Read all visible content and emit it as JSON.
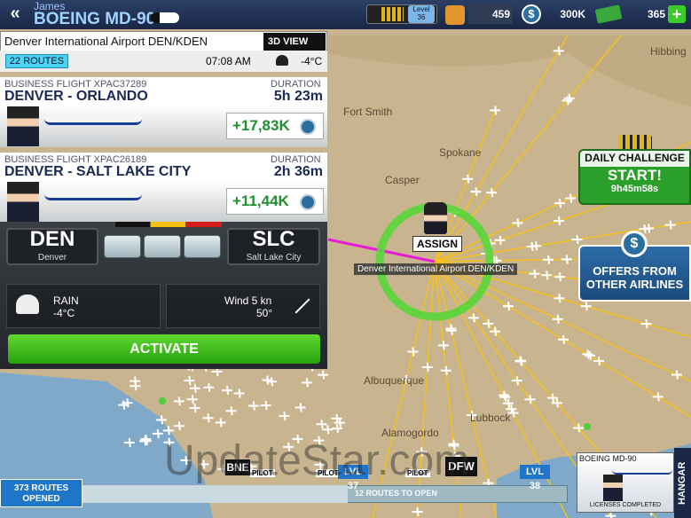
{
  "header": {
    "player": "James",
    "aircraft": "BOEING MD-90",
    "level_label": "Level",
    "level": "36",
    "rank_points": "459",
    "coins": "300K",
    "cash": "365"
  },
  "airport_panel": {
    "title": "Denver International Airport DEN/KDEN",
    "view_button": "3D VIEW",
    "routes": "22 ROUTES",
    "time": "07:08 AM",
    "temperature": "-4°C"
  },
  "flights": [
    {
      "kind": "BUSINESS FLIGHT XPAC37289",
      "duration_label": "DURATION",
      "route": "DENVER - ORLANDO",
      "duration": "5h 23m",
      "reward": "+17,83K"
    },
    {
      "kind": "BUSINESS FLIGHT XPAC26189",
      "duration_label": "DURATION",
      "route": "DENVER - SALT LAKE CITY",
      "duration": "2h 36m",
      "reward": "+11,44K"
    }
  ],
  "detail": {
    "origin_code": "DEN",
    "origin_city": "Denver",
    "destination_code": "SLC",
    "destination_city": "Salt Lake City",
    "weather": "RAIN",
    "weather_temp": "-4°C",
    "wind": "Wind 5 kn",
    "wind_dir": "50°",
    "activate": "ACTIVATE"
  },
  "map": {
    "cities": [
      "Fort Smith",
      "Spokane",
      "Hibbing",
      "Casper",
      "Albuquerque",
      "Alamogordo",
      "Lubbock"
    ],
    "assign": "ASSIGN",
    "airport_label": "Denver International Airport DEN/KDEN"
  },
  "daily_challenge": {
    "title": "DAILY CHALLENGE",
    "action": "START!",
    "timer": "9h45m58s"
  },
  "offers": {
    "text": "OFFERS FROM OTHER AIRLINES"
  },
  "progress": {
    "opened": "373 ROUTES OPENED",
    "to_open": "12 ROUTES TO OPEN",
    "hub1": "BNE",
    "pilot1": "PILOT",
    "pilot2": "PILOT",
    "lvl1": "LVL 37",
    "pilot3": "PILOT",
    "hub2": "DFW",
    "lvl2": "LVL 38"
  },
  "hangar": {
    "aircraft": "BOEING MD-90",
    "status": "LICENSES COMPLETED",
    "tab": "HANGAR"
  },
  "watermark": "UpdateStar.com"
}
